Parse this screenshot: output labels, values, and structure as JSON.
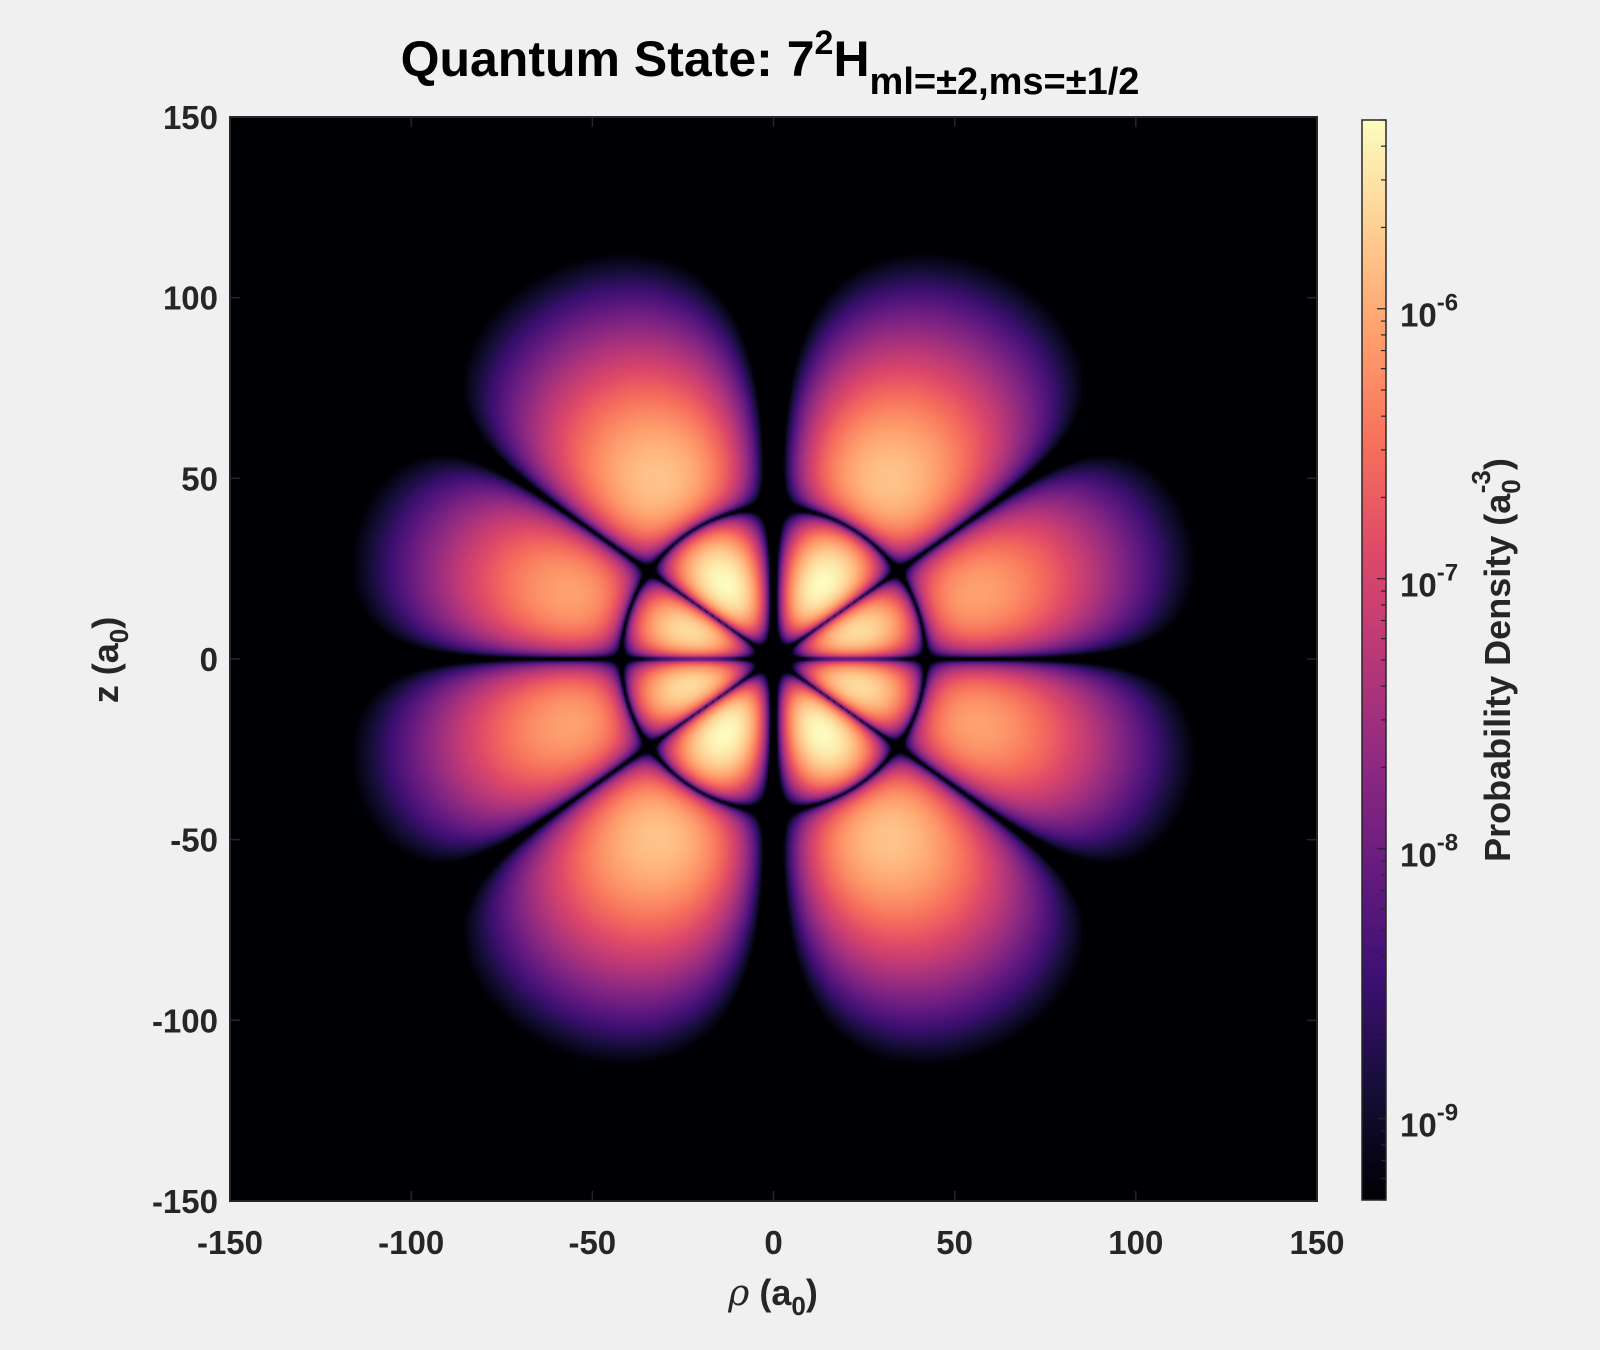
{
  "chart_data": {
    "type": "heatmap",
    "title": {
      "prefix": "Quantum State: 7",
      "superscript": "2",
      "symbol": "H",
      "subscript": "ml=±2,ms=±1/2"
    },
    "xlabel": {
      "symbol": "ρ",
      "text_before_sub": " (a",
      "sub": "0",
      "text_after_sub": ")"
    },
    "ylabel": {
      "text_before_sub": "z (a",
      "sub": "0",
      "text_after_sub": ")"
    },
    "xlim": [
      -150,
      150
    ],
    "ylim": [
      -150,
      150
    ],
    "x_ticks": [
      -150,
      -100,
      -50,
      0,
      50,
      100,
      150
    ],
    "x_tick_labels": [
      "-150",
      "-100",
      "-50",
      "0",
      "50",
      "100",
      "150"
    ],
    "y_ticks": [
      150,
      100,
      50,
      0,
      -50,
      -100,
      -150
    ],
    "y_tick_labels": [
      "150",
      "100",
      "50",
      "0",
      "-50",
      "-100",
      "-150"
    ],
    "colorbar": {
      "label": {
        "text_before_sub": "Probability Density (a",
        "sub": "0",
        "sup": "-3",
        "text_after": ")"
      },
      "scale": "log",
      "colormap": "magma",
      "clim": [
        5e-10,
        5e-06
      ],
      "ticks": [
        1e-09,
        1e-08,
        1e-07,
        1e-06
      ],
      "tick_labels": [
        {
          "base": "10",
          "exp": "-9"
        },
        {
          "base": "10",
          "exp": "-8"
        },
        {
          "base": "10",
          "exp": "-7"
        },
        {
          "base": "10",
          "exp": "-6"
        }
      ]
    },
    "n": 7,
    "l": 5,
    "m": 2,
    "grid": false
  }
}
